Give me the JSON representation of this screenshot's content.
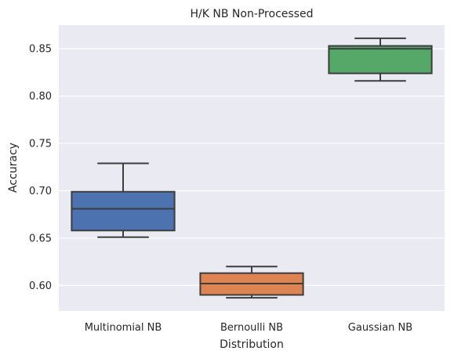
{
  "chart_data": {
    "type": "box",
    "title": "H/K NB Non-Processed",
    "xlabel": "Distribution",
    "ylabel": "Accuracy",
    "ylim": [
      0.573,
      0.875
    ],
    "yticks": [
      0.6,
      0.65,
      0.7,
      0.75,
      0.8,
      0.85
    ],
    "ytick_labels": [
      "0.60",
      "0.65",
      "0.70",
      "0.75",
      "0.80",
      "0.85"
    ],
    "grid": true,
    "categories": [
      "Multinomial NB",
      "Bernoulli NB",
      "Gaussian NB"
    ],
    "boxes": [
      {
        "category": "Multinomial NB",
        "color": "#4C72B0",
        "whisker_low": 0.651,
        "q1": 0.658,
        "median": 0.681,
        "q3": 0.699,
        "whisker_high": 0.729
      },
      {
        "category": "Bernoulli NB",
        "color": "#DD8452",
        "whisker_low": 0.587,
        "q1": 0.59,
        "median": 0.602,
        "q3": 0.613,
        "whisker_high": 0.62
      },
      {
        "category": "Gaussian NB",
        "color": "#55A868",
        "whisker_low": 0.816,
        "q1": 0.824,
        "median": 0.85,
        "q3": 0.853,
        "whisker_high": 0.861
      }
    ]
  },
  "colors": {
    "plot_background": "#EAEAF2",
    "grid": "#FFFFFF",
    "box_edge": "#3D3D3D"
  }
}
